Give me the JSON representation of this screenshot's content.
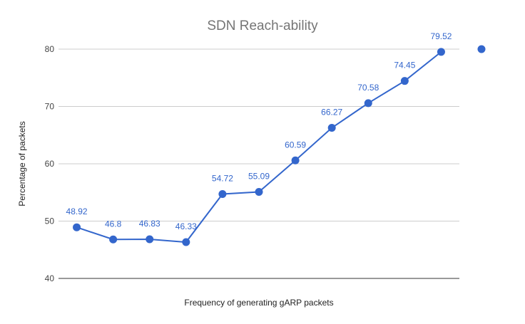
{
  "chart_data": {
    "type": "line",
    "title": "SDN Reach-ability",
    "xlabel": "Frequency of generating gARP packets",
    "ylabel": "Percentage of packets",
    "ylim": [
      40,
      80
    ],
    "yticks": [
      "40",
      "50",
      "60",
      "70",
      "80"
    ],
    "grid": true,
    "series_color": "#3366cc",
    "series": [
      {
        "values": [
          48.92,
          46.8,
          46.83,
          46.33,
          54.72,
          55.09,
          60.59,
          66.27,
          70.58,
          74.45,
          79.52
        ],
        "labels": [
          "48.92",
          "46.8",
          "46.83",
          "46.33",
          "54.72",
          "55.09",
          "60.59",
          "66.27",
          "70.58",
          "74.45",
          "79.52"
        ]
      }
    ],
    "legend": {
      "placement": "right",
      "marker_color": "#3366cc"
    }
  }
}
